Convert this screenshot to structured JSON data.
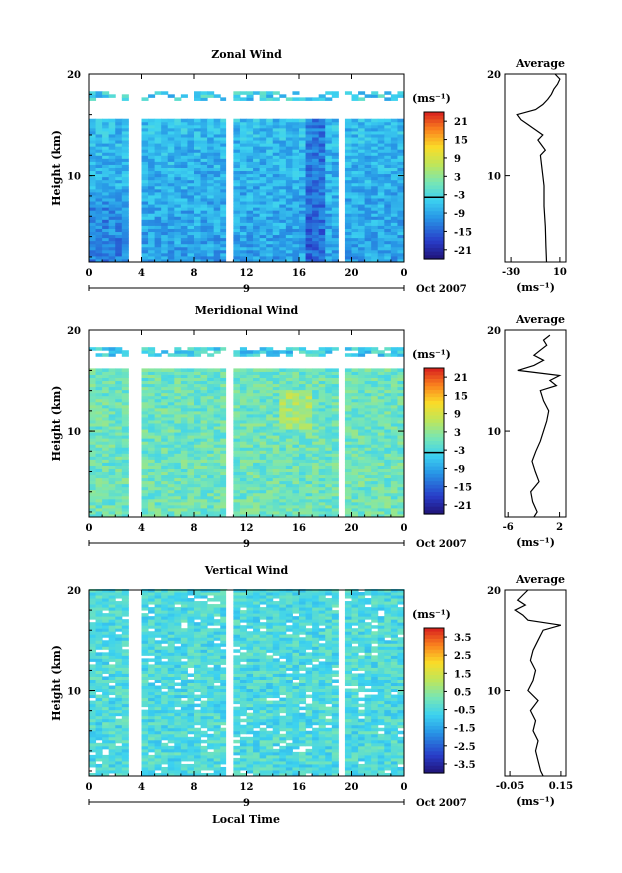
{
  "figure": {
    "date_label": "Oct 2007",
    "xlabel": "Local Time"
  },
  "chart_data": [
    {
      "type": "heatmap",
      "title": "Zonal Wind",
      "ylabel": "Height (km)",
      "unit": "(ms⁻¹)",
      "xlim": [
        0,
        24
      ],
      "ylim": [
        1.5,
        20
      ],
      "x_ticks": [
        "0",
        "4",
        "8",
        "12",
        "16",
        "20",
        "0"
      ],
      "day_label": "9",
      "y_ticks": [
        "20",
        "10"
      ],
      "colorbar_ticks": [
        "21",
        "15",
        "9",
        "3",
        "-3",
        "-9",
        "-15",
        "-21"
      ],
      "colorbar_range": [
        -24,
        24
      ],
      "data_gaps_hours": [
        3.3,
        10.6,
        19.2
      ],
      "white_above_km": 15.5,
      "profile": {
        "title": "Average",
        "xlabel": "(ms⁻¹)",
        "x_ticks": [
          "-30",
          "10"
        ],
        "xlim": [
          -35,
          15
        ],
        "y_ticks": [
          "20",
          "10"
        ],
        "heights_km": [
          1.5,
          3,
          5,
          7,
          9,
          10,
          11,
          12,
          12.5,
          13,
          13.5,
          14,
          14.5,
          15,
          15.5,
          16,
          16.5,
          17,
          17.5,
          18,
          18.5,
          19,
          19.5,
          20
        ],
        "values": [
          -1,
          -1.5,
          -2,
          -3,
          -3,
          -4,
          -5,
          -6,
          -2,
          -5,
          -8,
          -4,
          -10,
          -16,
          -22,
          -25,
          -10,
          -4,
          0,
          3,
          5,
          8,
          10,
          6
        ]
      }
    },
    {
      "type": "heatmap",
      "title": "Meridional Wind",
      "ylabel": "Height (km)",
      "unit": "(ms⁻¹)",
      "xlim": [
        0,
        24
      ],
      "ylim": [
        1.5,
        20
      ],
      "x_ticks": [
        "0",
        "4",
        "8",
        "12",
        "16",
        "20",
        "0"
      ],
      "day_label": "9",
      "y_ticks": [
        "20",
        "10"
      ],
      "colorbar_ticks": [
        "21",
        "15",
        "9",
        "3",
        "-3",
        "-9",
        "-15",
        "-21"
      ],
      "colorbar_range": [
        -24,
        24
      ],
      "data_gaps_hours": [
        3.3,
        10.6,
        19.2
      ],
      "white_above_km": 16.0,
      "profile": {
        "title": "Average",
        "xlabel": "(ms⁻¹)",
        "x_ticks": [
          "-6",
          "2"
        ],
        "xlim": [
          -6.5,
          3
        ],
        "y_ticks": [
          "20",
          "10"
        ],
        "heights_km": [
          1.5,
          2,
          3,
          4,
          5,
          6,
          7,
          8,
          9,
          10,
          11,
          12,
          13,
          14,
          14.5,
          15,
          15.5,
          16,
          16.5,
          17,
          17.5,
          18,
          18.5,
          19,
          19.5
        ],
        "values": [
          -2,
          -1.5,
          -2.2,
          -2.5,
          -1.2,
          -1.8,
          -2.3,
          -1.7,
          -1,
          -0.5,
          0,
          0.3,
          -0.5,
          -1,
          1.5,
          0.5,
          2,
          -4.5,
          -2,
          -0.5,
          -2,
          -1,
          0,
          -0.5,
          0.5
        ]
      }
    },
    {
      "type": "heatmap",
      "title": "Vertical Wind",
      "ylabel": "Height (km)",
      "unit": "(ms⁻¹)",
      "xlim": [
        0,
        24
      ],
      "ylim": [
        1.5,
        20
      ],
      "x_ticks": [
        "0",
        "4",
        "8",
        "12",
        "16",
        "20",
        "0"
      ],
      "day_label": "9",
      "y_ticks": [
        "20",
        "10"
      ],
      "colorbar_ticks": [
        "3.5",
        "2.5",
        "1.5",
        "0.5",
        "-0.5",
        "-1.5",
        "-2.5",
        "-3.5"
      ],
      "colorbar_range": [
        -4,
        4
      ],
      "data_gaps_hours": [
        3.3,
        10.6,
        19.2
      ],
      "white_above_km": 21,
      "profile": {
        "title": "Average",
        "xlabel": "(ms⁻¹)",
        "x_ticks": [
          "-0.05",
          "0.15"
        ],
        "xlim": [
          -0.07,
          0.17
        ],
        "y_ticks": [
          "20",
          "10"
        ],
        "heights_km": [
          1.5,
          2,
          3,
          4,
          5,
          6,
          7,
          8,
          9,
          10,
          11,
          12,
          13,
          14,
          15,
          16,
          16.5,
          17,
          17.5,
          18,
          18.5,
          19,
          19.5,
          20
        ],
        "values": [
          0.08,
          0.07,
          0.06,
          0.05,
          0.06,
          0.04,
          0.05,
          0.03,
          0.06,
          0.02,
          0.04,
          0.05,
          0.03,
          0.04,
          0.06,
          0.08,
          0.15,
          0.02,
          0,
          -0.03,
          0.01,
          -0.02,
          0,
          0.02
        ]
      }
    }
  ]
}
